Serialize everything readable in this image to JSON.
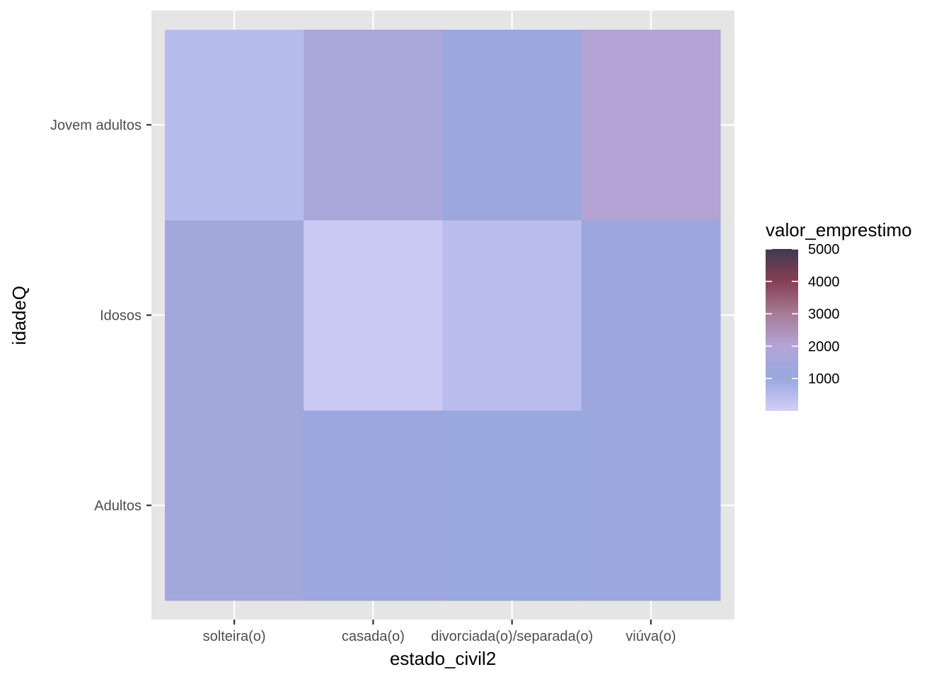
{
  "chart_data": {
    "type": "heatmap",
    "xlabel": "estado_civil2",
    "ylabel": "idadeQ",
    "x_categories": [
      "solteira(o)",
      "casada(o)",
      "divorciada(o)/separada(o)",
      "viúva(o)"
    ],
    "y_categories": [
      "Adultos",
      "Idosos",
      "Jovem adultos"
    ],
    "values": [
      [
        1350,
        1150,
        1050,
        1100
      ],
      [
        1350,
        150,
        450,
        1200
      ],
      [
        500,
        1600,
        1150,
        2050
      ]
    ],
    "legend": {
      "title": "valor_emprestimo",
      "range": [
        0,
        5000
      ],
      "breaks": [
        1000,
        2000,
        3000,
        4000,
        5000
      ],
      "colors": [
        "#d3cff8",
        "#98a8df",
        "#b4a4d6",
        "#a77b97",
        "#863f54",
        "#3f3a54"
      ]
    },
    "grid": true
  }
}
